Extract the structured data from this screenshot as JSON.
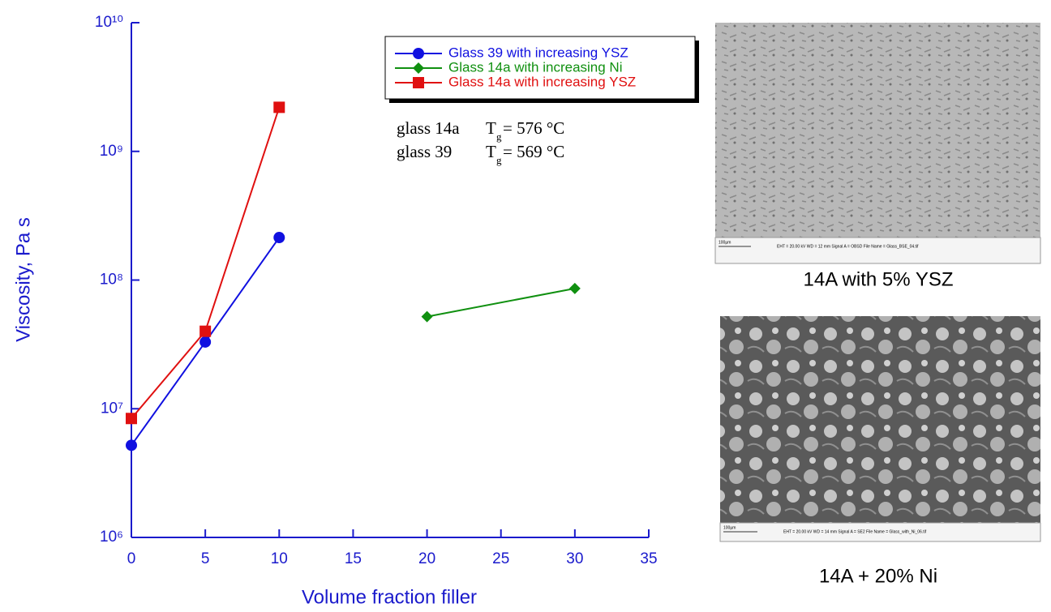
{
  "chart_data": {
    "type": "line",
    "y_label": "Viscosity, Pa s",
    "x_label": "Volume fraction filler",
    "xlim": [
      0,
      35
    ],
    "xticks": [
      0,
      5,
      10,
      15,
      20,
      25,
      30,
      35
    ],
    "ylim": [
      1000000,
      10000000000
    ],
    "log_y": true,
    "yticks": [
      {
        "value": 1000000,
        "label": "10⁶"
      },
      {
        "value": 10000000,
        "label": "10⁷"
      },
      {
        "value": 100000000,
        "label": "10⁸"
      },
      {
        "value": 1000000000,
        "label": "10⁹"
      },
      {
        "value": 10000000000,
        "label": "10¹⁰"
      }
    ],
    "axis_color": "#1a1acc",
    "series": [
      {
        "name": "Glass 39 with increasing YSZ",
        "color": "#1010e0",
        "marker": "circle",
        "x": [
          0,
          5,
          10
        ],
        "values": [
          5200000,
          33000000,
          214000000
        ]
      },
      {
        "name": "Glass 14a with increasing Ni",
        "color": "#109010",
        "marker": "diamond",
        "x": [
          20,
          30
        ],
        "values": [
          52000000,
          86000000
        ]
      },
      {
        "name": "Glass 14a with increasing YSZ",
        "color": "#e01010",
        "marker": "square",
        "x": [
          0,
          5,
          10
        ],
        "values": [
          8400000,
          40000000,
          2200000000
        ]
      }
    ],
    "annotations": [
      {
        "glass": "glass 14a",
        "symbol": "T",
        "sub": "g",
        "value": "= 576 °C"
      },
      {
        "glass": "glass 39",
        "symbol": "T",
        "sub": "g",
        "value": "= 569 °C"
      }
    ]
  },
  "images": [
    {
      "caption": "14A with 5% YSZ",
      "scale": "100µm",
      "info": "EHT = 20.00 kV    WD =  12 mm    Signal A = OBSD    File Name = Glass_BSE_04.tif"
    },
    {
      "caption": "14A + 20% Ni",
      "scale": "100µm",
      "info": "EHT = 20.00 kV    WD =  14 mm    Signal A = SE2    File Name = Glass_with_Ni_06.tif"
    }
  ]
}
